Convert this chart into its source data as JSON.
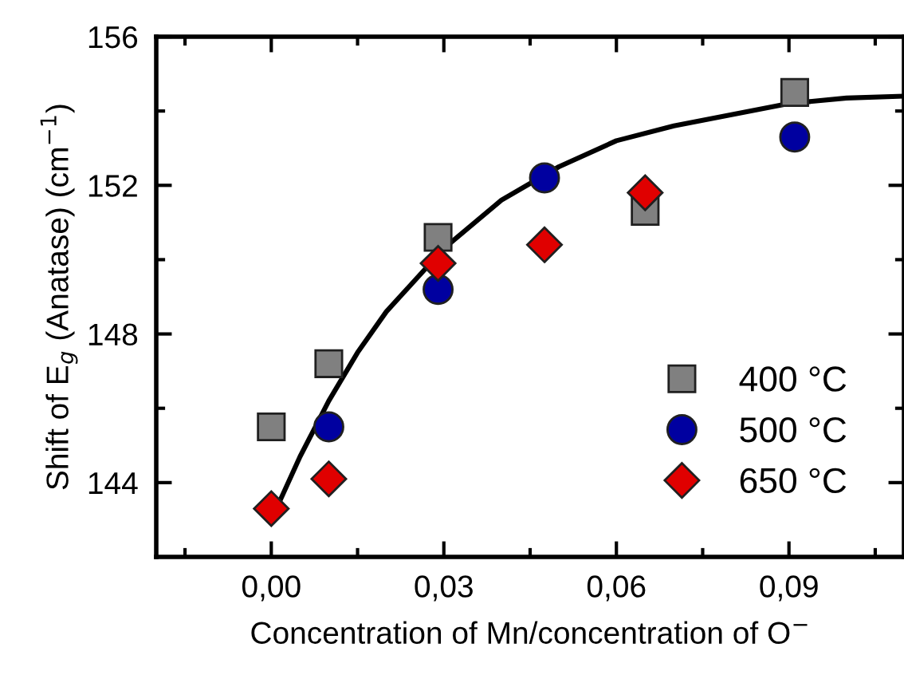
{
  "chart_data": {
    "type": "scatter",
    "xlabel": "Concentration of Mn/concentration of O$^{−}$",
    "ylabel": "Shift of E$_{g}$ (Anatase) (cm$^{−1}$)",
    "xlim": [
      -0.02,
      0.11
    ],
    "ylim": [
      142,
      156
    ],
    "xticks": [
      {
        "value": -0.015,
        "label": null
      },
      {
        "value": 0,
        "label": "0,00"
      },
      {
        "value": 0.015,
        "label": null
      },
      {
        "value": 0.03,
        "label": "0,03"
      },
      {
        "value": 0.045,
        "label": null
      },
      {
        "value": 0.06,
        "label": "0,06"
      },
      {
        "value": 0.075,
        "label": null
      },
      {
        "value": 0.09,
        "label": "0,09"
      },
      {
        "value": 0.105,
        "label": null
      }
    ],
    "yticks": [
      144,
      {
        "value": 146,
        "label": null
      },
      148,
      {
        "value": 150,
        "label": null
      },
      152,
      {
        "value": 154,
        "label": null
      },
      156
    ],
    "grid": false,
    "legend": "bottom right",
    "series": [
      {
        "name": "400 °C",
        "color": "#808080",
        "marker": "square",
        "x": [
          0,
          0.01,
          0.029,
          0.065,
          0.091
        ],
        "values": [
          145.5,
          147.2,
          150.6,
          151.3,
          154.5
        ]
      },
      {
        "name": "500 °C",
        "color": "#0000a0",
        "marker": "circle",
        "x": [
          0.01,
          0.029,
          0.0475,
          0.091
        ],
        "values": [
          145.5,
          149.2,
          152.2,
          153.3
        ]
      },
      {
        "name": "650 °C",
        "color": "#e00000",
        "marker": "diamond",
        "x": [
          0,
          0.01,
          0.029,
          0.0475,
          0.065
        ],
        "values": [
          143.3,
          144.1,
          149.9,
          150.4,
          151.8
        ]
      },
      {
        "type": "line",
        "color": "#000000",
        "marker": "none",
        "x": [
          0,
          0.005,
          0.01,
          0.015,
          0.02,
          0.03,
          0.04,
          0.05,
          0.06,
          0.07,
          0.08,
          0.09,
          0.1,
          0.11
        ],
        "values": [
          143.0,
          144.7,
          146.2,
          147.5,
          148.6,
          150.3,
          151.6,
          152.5,
          153.2,
          153.6,
          153.9,
          154.2,
          154.35,
          154.4
        ]
      }
    ]
  }
}
